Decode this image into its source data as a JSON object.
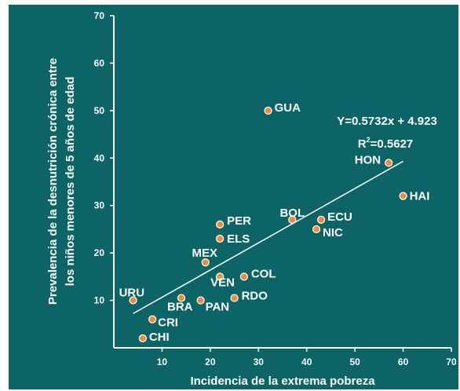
{
  "chart_data": {
    "type": "scatter",
    "title": "",
    "xlabel": "Incidencia de la extrema pobreza",
    "ylabel_line1": "Prevalencia de la desnutrición crónica entre",
    "ylabel_line2": "los niños menores de 5 años de edad",
    "xlim": [
      0,
      70
    ],
    "ylim": [
      0,
      70
    ],
    "x_ticks": [
      "10",
      "20",
      "30",
      "40",
      "50",
      "60",
      "70"
    ],
    "y_ticks": [
      "10",
      "20",
      "30",
      "40",
      "50",
      "60",
      "70"
    ],
    "grid": false,
    "points": [
      {
        "label": "GUA",
        "x": 32,
        "y": 50
      },
      {
        "label": "HON",
        "x": 57,
        "y": 39
      },
      {
        "label": "HAI",
        "x": 60,
        "y": 32
      },
      {
        "label": "BOL",
        "x": 37,
        "y": 27
      },
      {
        "label": "ECU",
        "x": 43,
        "y": 27
      },
      {
        "label": "NIC",
        "x": 42,
        "y": 25
      },
      {
        "label": "PER",
        "x": 22,
        "y": 26
      },
      {
        "label": "ELS",
        "x": 22,
        "y": 23
      },
      {
        "label": "MEX",
        "x": 19,
        "y": 18
      },
      {
        "label": "COL",
        "x": 27,
        "y": 15
      },
      {
        "label": "VEN",
        "x": 22,
        "y": 15
      },
      {
        "label": "URU",
        "x": 4,
        "y": 10
      },
      {
        "label": "BRA",
        "x": 14,
        "y": 10.5
      },
      {
        "label": "PAN",
        "x": 18,
        "y": 10
      },
      {
        "label": "RDO",
        "x": 25,
        "y": 10.5
      },
      {
        "label": "CRI",
        "x": 8,
        "y": 6
      },
      {
        "label": "CHI",
        "x": 6,
        "y": 2
      }
    ],
    "trendline": {
      "slope": 0.5732,
      "intercept": 4.923,
      "x_range": [
        4,
        60
      ],
      "equation_label": "Y=0.5732x + 4.923",
      "r2_label_prefix": "R",
      "r2_label_sup": "2",
      "r2_label_suffix": "=0.5627"
    },
    "colors": {
      "background": "#0c6466",
      "point_fill": "#f08a3c",
      "point_stroke": "#ffffff",
      "text": "#ffffff"
    }
  }
}
